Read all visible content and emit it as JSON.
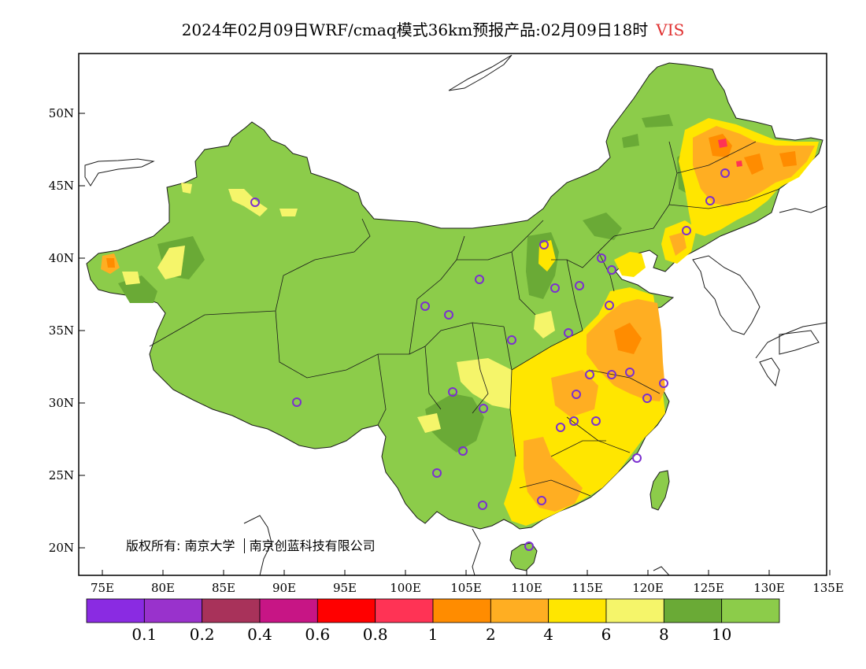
{
  "title": {
    "main": "2024年02月09日WRF/cmaq模式36km预报产品:02月09日18时",
    "variable": "VIS"
  },
  "axes": {
    "lat_labels": [
      "50N",
      "45N",
      "40N",
      "35N",
      "30N",
      "25N",
      "20N"
    ],
    "lon_labels": [
      "75E",
      "80E",
      "85E",
      "90E",
      "95E",
      "100E",
      "105E",
      "110E",
      "115E",
      "120E",
      "125E",
      "130E",
      "135E"
    ]
  },
  "legend": {
    "colors": [
      "#8a2be2",
      "#9932cc",
      "#a8325a",
      "#c71585",
      "#ff0000",
      "#ff3355",
      "#ff8c00",
      "#ffae22",
      "#ffe600",
      "#f5f56a",
      "#6aaa36",
      "#8ccc4a"
    ],
    "labels": [
      "0.1",
      "0.2",
      "0.4",
      "0.6",
      "0.8",
      "1",
      "2",
      "4",
      "6",
      "8",
      "10"
    ]
  },
  "copyright": "版权所有: 南京大学",
  "copyright2": "南京创蓝科技有限公司",
  "colors": {
    "land_green": "#8ccc4a",
    "dark_green": "#6aaa36",
    "yellow": "#ffe600",
    "light_yellow": "#f5f56a",
    "orange": "#ffae22",
    "dark_orange": "#ff8c00",
    "station": "#7b2fd0"
  }
}
